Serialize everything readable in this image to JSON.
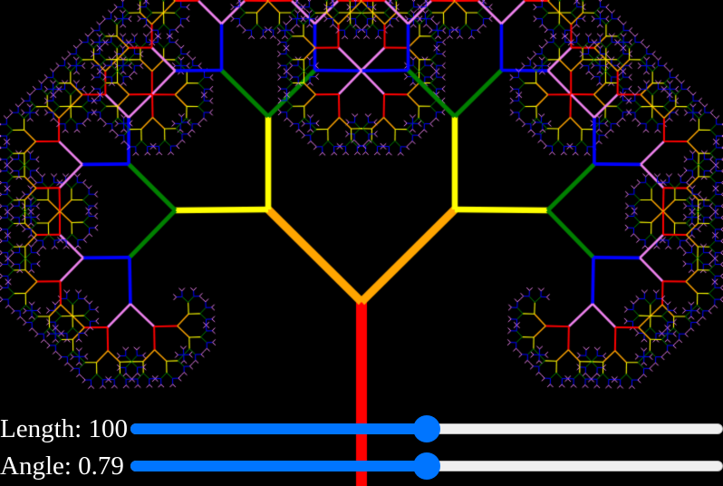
{
  "scene": {
    "background": "#000000",
    "branch_colors": [
      "#ff0000",
      "#ffa500",
      "#ffff00",
      "#008000",
      "#0000ff",
      "#ee82ee"
    ],
    "depth": 12,
    "scale_factor": 0.7071
  },
  "controls": {
    "length": {
      "label": "Length: 100",
      "value": 100,
      "fraction": 0.5
    },
    "angle": {
      "label": "Angle: 0.79",
      "value": 0.79,
      "fraction": 0.5
    },
    "accent": "#0075ff"
  }
}
